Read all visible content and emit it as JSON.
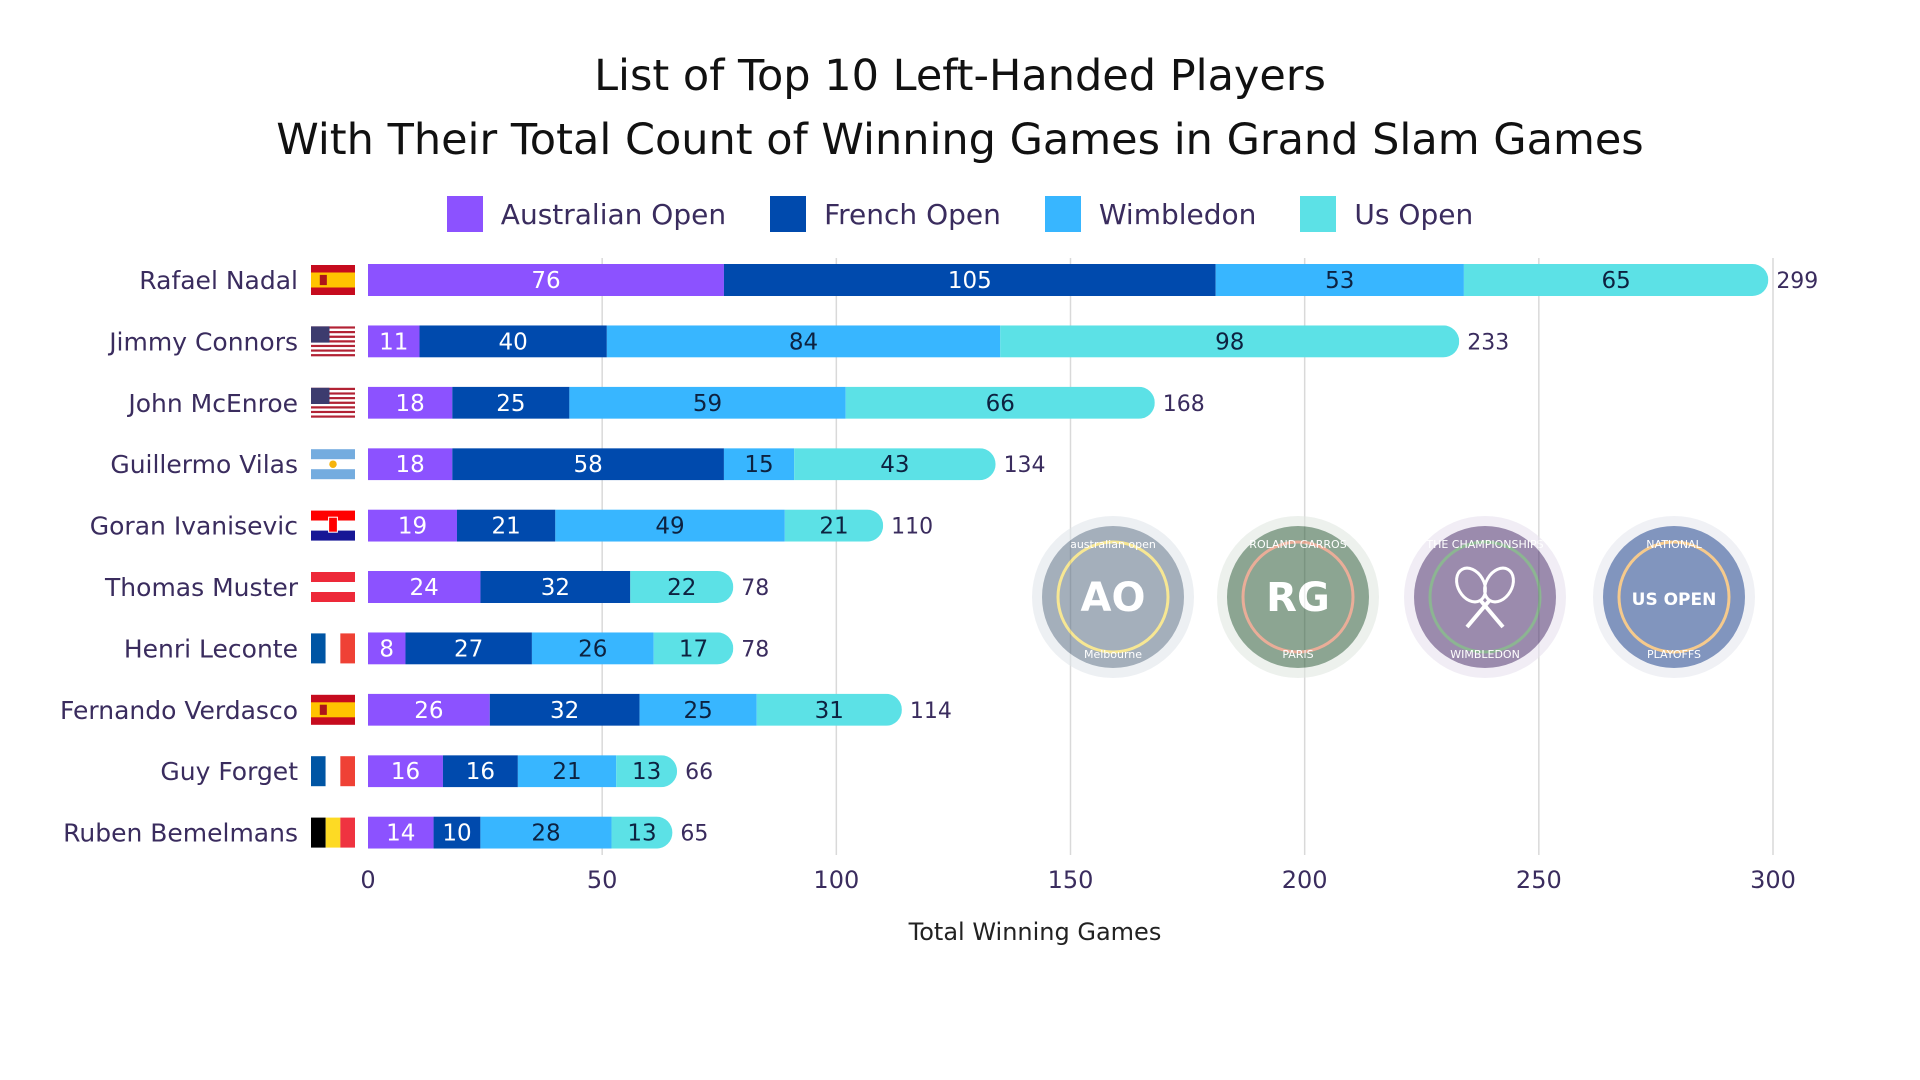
{
  "chart_data": {
    "type": "bar",
    "orientation": "horizontal",
    "stacked": true,
    "title": "List of Top 10 Left-Handed Players",
    "subtitle": "With Their Total Count of Winning Games in Grand Slam Games",
    "xlabel": "Total Winning Games",
    "ylabel": "",
    "xlim": [
      0,
      300
    ],
    "xticks": [
      0,
      50,
      100,
      150,
      200,
      250,
      300
    ],
    "grid": "vertical",
    "legend_position": "top",
    "categories": [
      "Rafael Nadal",
      "Jimmy Connors",
      "John McEnroe",
      "Guillermo Vilas",
      "Goran Ivanisevic",
      "Thomas Muster",
      "Henri Leconte",
      "Fernando Verdasco",
      "Guy Forget",
      "Ruben Bemelmans"
    ],
    "flags": [
      "spain-flag",
      "usa-flag",
      "usa-flag",
      "argentina-flag",
      "croatia-flag",
      "austria-flag",
      "france-flag",
      "spain-flag",
      "france-flag",
      "belgium-flag"
    ],
    "series": [
      {
        "name": "Australian Open",
        "color": "#8c52ff",
        "values": [
          76,
          11,
          18,
          18,
          19,
          24,
          8,
          26,
          16,
          14
        ]
      },
      {
        "name": "French Open",
        "color": "#004aad",
        "values": [
          105,
          40,
          25,
          58,
          21,
          32,
          27,
          32,
          16,
          10
        ]
      },
      {
        "name": "Wimbledon",
        "color": "#38b6ff",
        "values": [
          53,
          84,
          59,
          15,
          49,
          0,
          26,
          25,
          21,
          28
        ]
      },
      {
        "name": "Us Open",
        "color": "#5ce1e6",
        "values": [
          65,
          98,
          66,
          43,
          21,
          22,
          17,
          31,
          13,
          13
        ]
      }
    ],
    "totals": [
      299,
      233,
      168,
      134,
      110,
      78,
      78,
      114,
      66,
      65
    ],
    "logos": [
      {
        "name": "australian-open-logo",
        "center": "AO",
        "top": "australian open",
        "bottom": "Melbourne"
      },
      {
        "name": "roland-garros-logo",
        "center": "RG",
        "top": "ROLAND GARROS",
        "bottom": "PARIS"
      },
      {
        "name": "wimbledon-logo",
        "center": "",
        "top": "THE CHAMPIONSHIPS",
        "bottom": "WIMBLEDON"
      },
      {
        "name": "us-open-logo",
        "center": "US OPEN",
        "top": "NATIONAL",
        "bottom": "PLAYOFFS"
      }
    ]
  }
}
